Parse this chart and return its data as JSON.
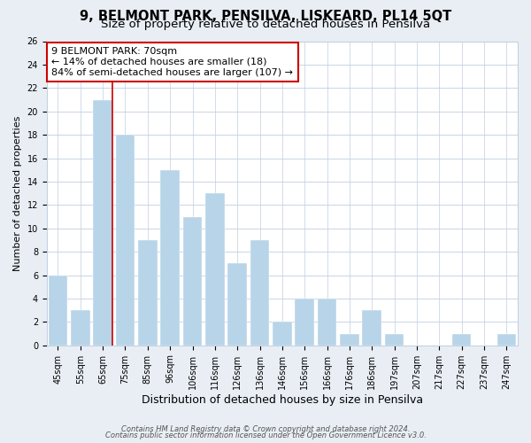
{
  "title": "9, BELMONT PARK, PENSILVA, LISKEARD, PL14 5QT",
  "subtitle": "Size of property relative to detached houses in Pensilva",
  "xlabel": "Distribution of detached houses by size in Pensilva",
  "ylabel": "Number of detached properties",
  "footer_line1": "Contains HM Land Registry data © Crown copyright and database right 2024.",
  "footer_line2": "Contains public sector information licensed under the Open Government Licence v3.0.",
  "bar_labels": [
    "45sqm",
    "55sqm",
    "65sqm",
    "75sqm",
    "85sqm",
    "96sqm",
    "106sqm",
    "116sqm",
    "126sqm",
    "136sqm",
    "146sqm",
    "156sqm",
    "166sqm",
    "176sqm",
    "186sqm",
    "197sqm",
    "207sqm",
    "217sqm",
    "227sqm",
    "237sqm",
    "247sqm"
  ],
  "bar_values": [
    6,
    3,
    21,
    18,
    9,
    15,
    11,
    13,
    7,
    9,
    2,
    4,
    4,
    1,
    3,
    1,
    0,
    0,
    1,
    0,
    1
  ],
  "bar_color": "#b8d4e8",
  "bar_edge_color": "#b8d4e8",
  "highlight_bar_index": 2,
  "highlight_line_color": "#cc0000",
  "annotation_line1": "9 BELMONT PARK: 70sqm",
  "annotation_line2": "← 14% of detached houses are smaller (18)",
  "annotation_line3": "84% of semi-detached houses are larger (107) →",
  "annotation_box_color": "#ffffff",
  "annotation_box_edge_color": "#cc0000",
  "ylim": [
    0,
    26
  ],
  "yticks": [
    0,
    2,
    4,
    6,
    8,
    10,
    12,
    14,
    16,
    18,
    20,
    22,
    24,
    26
  ],
  "background_color": "#e8eef4",
  "plot_background_color": "#ffffff",
  "grid_color": "#c0cfe0",
  "title_fontsize": 10.5,
  "subtitle_fontsize": 9.5,
  "xlabel_fontsize": 9,
  "ylabel_fontsize": 8,
  "tick_fontsize": 7,
  "annotation_fontsize": 8,
  "footer_fontsize": 6
}
